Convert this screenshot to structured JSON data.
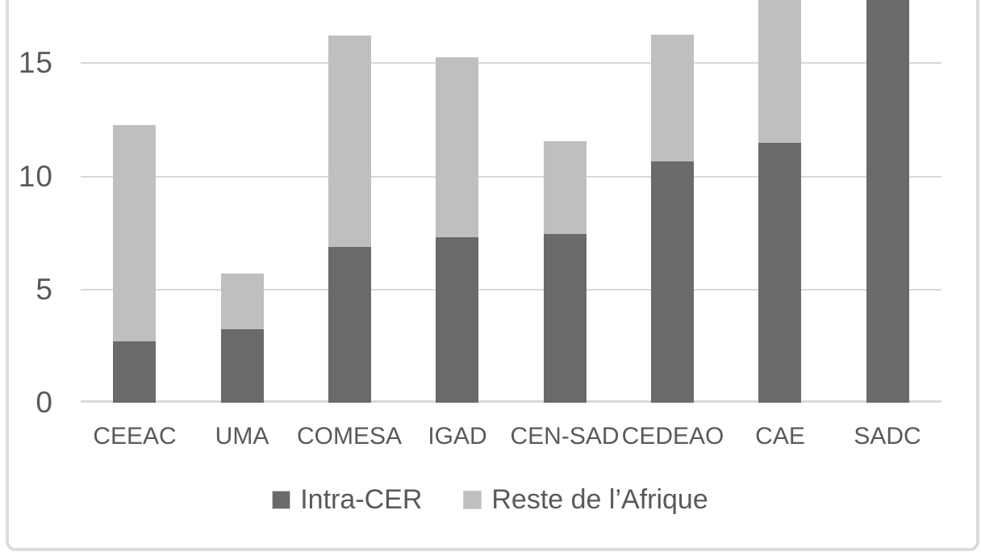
{
  "chart_data": {
    "type": "bar",
    "stacked": true,
    "title": "",
    "xlabel": "",
    "ylabel": "",
    "categories": [
      "CEEAC",
      "UMA",
      "COMESA",
      "IGAD",
      "CEN-SAD",
      "CEDEAO",
      "CAE",
      "SADC"
    ],
    "series": [
      {
        "name": "Intra-CER",
        "color": "#6a6a6a",
        "values": [
          2.7,
          3.25,
          6.9,
          7.3,
          7.45,
          10.65,
          11.5,
          17.8
        ]
      },
      {
        "name": "Reste de l’Afrique",
        "color": "#bfbfbf",
        "values": [
          9.55,
          2.45,
          9.35,
          7.95,
          4.1,
          5.6,
          6.3,
          0
        ]
      }
    ],
    "totals_visible": [
      12.25,
      5.7,
      16.25,
      15.25,
      11.55,
      16.25,
      17.8,
      17.8
    ],
    "ylim": [
      0,
      17.8
    ],
    "yticks": [
      0,
      5,
      10,
      15
    ],
    "grid": true,
    "legend_position": "bottom",
    "clipped_at_top": [
      "CAE",
      "SADC"
    ],
    "note": "Chart is cropped at top of screenshot; CAE 'Reste de l’Afrique' segment and SADC 'Intra-CER' bar extend beyond the visible edge."
  },
  "colors": {
    "grid": "#d9d9d9",
    "axis_text": "#595959",
    "frame_border": "#dcdcdc",
    "background": "#ffffff"
  }
}
